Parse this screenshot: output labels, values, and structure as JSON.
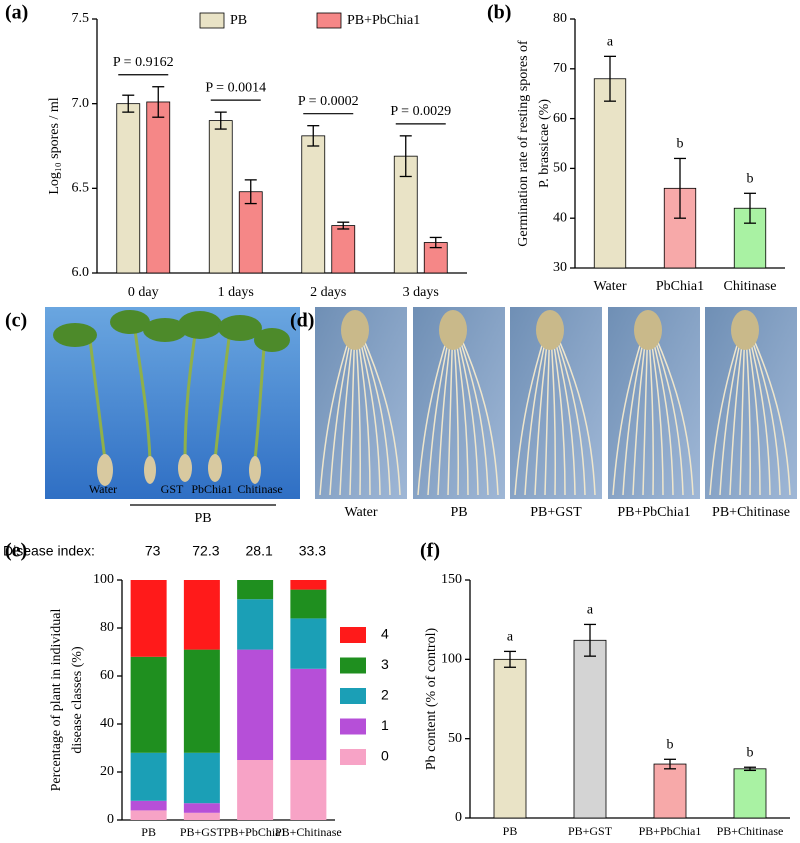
{
  "chart_data": [
    {
      "type": "bar",
      "panel": "(a)",
      "ylabel": [
        "Log₁₀ spores / ml"
      ],
      "categories": [
        "0 day",
        "1 days",
        "2 days",
        "3 days"
      ],
      "series": [
        {
          "name": "PB",
          "color": "#e9e3c6",
          "values": [
            7.0,
            6.9,
            6.81,
            6.69
          ],
          "errors": [
            0.05,
            0.05,
            0.06,
            0.12
          ]
        },
        {
          "name": "PB+PbChia1",
          "color": "#f58787",
          "values": [
            7.01,
            6.48,
            6.28,
            6.18
          ],
          "errors": [
            0.09,
            0.07,
            0.02,
            0.03
          ]
        }
      ],
      "pvalues": [
        "P = 0.9162",
        "P = 0.0014",
        "P = 0.0002",
        "P = 0.0029"
      ],
      "ylim": [
        6.0,
        7.5
      ],
      "yticks": [
        {
          "value": 6,
          "label": "6.0"
        },
        6.5,
        {
          "value": 7,
          "label": "7.0"
        },
        7.5
      ]
    },
    {
      "type": "bar",
      "panel": "(b)",
      "ylabel": [
        "Germination rate of resting spores of",
        "P. brassicae (%)"
      ],
      "categories": [
        "Water",
        "PbChia1",
        "Chitinase"
      ],
      "values": [
        68,
        46,
        42
      ],
      "errors": [
        4.5,
        6,
        3
      ],
      "colors": [
        "#e9e3c6",
        "#f7a9a9",
        "#a9f2a3"
      ],
      "letters": [
        "a",
        "b",
        "b"
      ],
      "ylim": [
        30,
        80
      ],
      "yticks": [
        30,
        40,
        50,
        60,
        70,
        80
      ]
    },
    {
      "type": "stacked_bar",
      "panel": "(e)",
      "ylabel": [
        "Percentage of plant in individual",
        "disease classes (%)"
      ],
      "index_label": "Disease index:",
      "index_values": [
        73,
        72.3,
        28.1,
        33.3
      ],
      "categories": [
        "PB",
        "PB+GST",
        "PB+PbChia1",
        "PB+Chitinase"
      ],
      "series": [
        {
          "name": "0",
          "color": "#f7a3c6",
          "values": [
            4,
            3,
            25,
            25
          ]
        },
        {
          "name": "1",
          "color": "#b64fd8",
          "values": [
            4,
            4,
            46,
            38
          ]
        },
        {
          "name": "2",
          "color": "#1b9fb6",
          "values": [
            20,
            21,
            21,
            21
          ]
        },
        {
          "name": "3",
          "color": "#1f8f1f",
          "values": [
            40,
            43,
            8,
            12
          ]
        },
        {
          "name": "4",
          "color": "#ff1a1a",
          "values": [
            32,
            29,
            0,
            4
          ]
        }
      ],
      "ylim": [
        0,
        100
      ],
      "yticks": [
        0,
        20,
        40,
        60,
        80,
        100
      ]
    },
    {
      "type": "bar",
      "panel": "(f)",
      "ylabel": [
        "Pb content (% of control)"
      ],
      "categories": [
        "PB",
        "PB+GST",
        "PB+PbChia1",
        "PB+Chitinase"
      ],
      "values": [
        100,
        112,
        34,
        31
      ],
      "errors": [
        5,
        10,
        3,
        1
      ],
      "colors": [
        "#e9e3c6",
        "#d4d4d4",
        "#f7a9a9",
        "#a9f2a3"
      ],
      "letters": [
        "a",
        "a",
        "b",
        "b"
      ],
      "ylim": [
        0,
        150
      ],
      "yticks": [
        0,
        50,
        100,
        150
      ]
    }
  ],
  "photos": [
    {
      "panel": "(c)",
      "labels": [
        "Water",
        "GST",
        "PbChia1",
        "Chitinase"
      ],
      "group": "PB"
    },
    {
      "panel": "(d)",
      "labels": [
        "Water",
        "PB",
        "PB+GST",
        "PB+PbChia1",
        "PB+Chitinase"
      ]
    }
  ]
}
